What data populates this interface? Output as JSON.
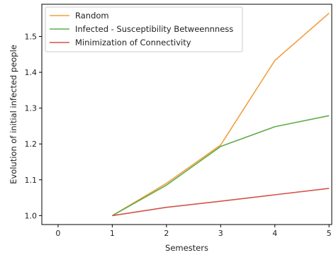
{
  "chart_data": {
    "type": "line",
    "title": "",
    "xlabel": "Semesters",
    "ylabel": "Evolution of initial infected people",
    "xlim": [
      -0.3,
      5.05
    ],
    "ylim": [
      0.975,
      1.59
    ],
    "x_ticks": [
      0,
      1,
      2,
      3,
      4,
      5
    ],
    "x_tick_labels": [
      "0",
      "1",
      "2",
      "3",
      "4",
      "5"
    ],
    "y_ticks": [
      1.0,
      1.1,
      1.2,
      1.3,
      1.4,
      1.5
    ],
    "y_tick_labels": [
      "1.0",
      "1.1",
      "1.2",
      "1.3",
      "1.4",
      "1.5"
    ],
    "grid": false,
    "legend_position": "upper-left",
    "x": [
      1,
      2,
      3,
      4,
      5
    ],
    "series": [
      {
        "name": "Random",
        "color": "#f0a042",
        "values": [
          1.0,
          1.09,
          1.197,
          1.433,
          1.565
        ]
      },
      {
        "name": "Infected - Susceptibility Betweennness",
        "color": "#5fad47",
        "values": [
          1.0,
          1.085,
          1.193,
          1.248,
          1.279
        ]
      },
      {
        "name": "Minimization of Connectivity",
        "color": "#d2544a",
        "values": [
          1.0,
          1.023,
          1.04,
          1.058,
          1.076
        ]
      }
    ]
  }
}
